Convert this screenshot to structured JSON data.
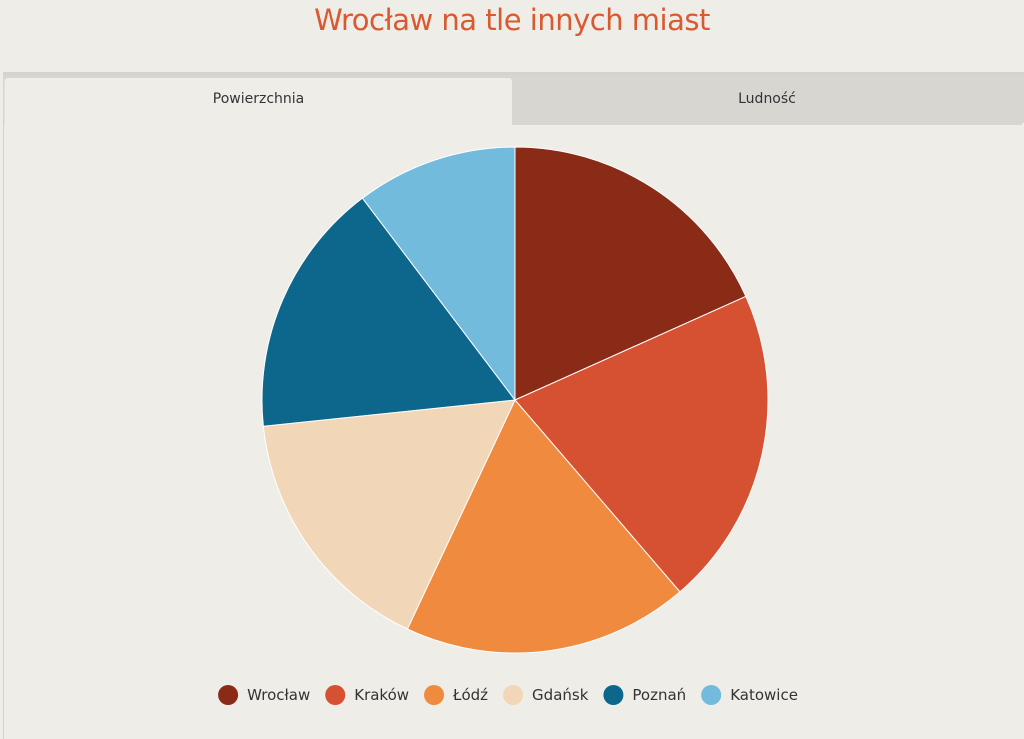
{
  "header": {
    "title": "Wrocław na tle innych miast"
  },
  "tabs": [
    {
      "label": "Powierzchnia",
      "active": true
    },
    {
      "label": "Ludność",
      "active": false
    }
  ],
  "chart_data": {
    "type": "pie",
    "title": "",
    "legend_position": "bottom",
    "categories": [
      "Wrocław",
      "Kraków",
      "Łódź",
      "Gdańsk",
      "Poznań",
      "Katowice"
    ],
    "values": [
      293,
      327,
      293,
      262,
      262,
      165
    ],
    "colors": [
      "#8a2b17",
      "#d65132",
      "#ef8a3f",
      "#f2d6b8",
      "#0d678c",
      "#73bbdd"
    ]
  }
}
